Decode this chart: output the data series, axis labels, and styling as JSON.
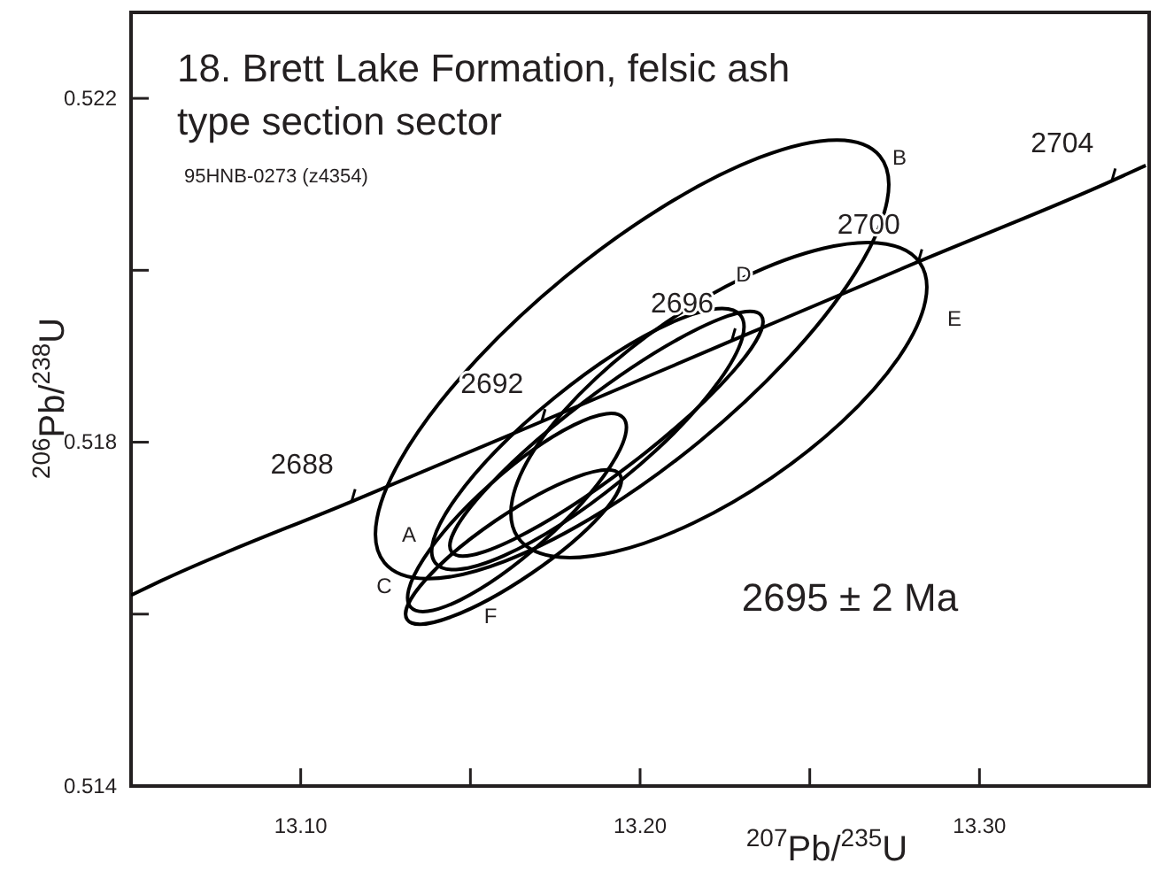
{
  "chart_data": {
    "type": "line",
    "title": "18. Brett Lake Formation, felsic ash type section sector",
    "subtitle": "95HNB-0273 (z4354)",
    "xlabel": "$^{207}$Pb/$^{235}$U",
    "ylabel": "$^{206}$Pb/$^{238}$U",
    "xlim": [
      13.05,
      13.35
    ],
    "ylim": [
      0.514,
      0.523
    ],
    "xticks": [
      {
        "value": 13.1,
        "label": "13.10"
      },
      {
        "value": 13.15,
        "label": null
      },
      {
        "value": 13.2,
        "label": "13.20"
      },
      {
        "value": 13.25,
        "label": null
      },
      {
        "value": 13.3,
        "label": "13.30"
      }
    ],
    "yticks": [
      {
        "value": 0.514,
        "label": "0.514"
      },
      {
        "value": 0.516,
        "label": null
      },
      {
        "value": 0.518,
        "label": "0.518"
      },
      {
        "value": 0.52,
        "label": null
      },
      {
        "value": 0.522,
        "label": "0.522"
      }
    ],
    "grid": false,
    "marker": "none",
    "line_style": "solid",
    "series": [
      {
        "color": "#000000",
        "x": [
          13.05,
          13.059,
          13.115,
          13.171,
          13.227,
          13.282,
          13.339,
          13.349
        ],
        "values": [
          0.51622,
          0.51639,
          0.51731,
          0.51824,
          0.51918,
          0.5201,
          0.52104,
          0.52122
        ]
      }
    ],
    "annotations": [
      {
        "text": "2688",
        "x": 13.115,
        "y": 0.51731
      },
      {
        "text": "2692",
        "x": 13.171,
        "y": 0.51824
      },
      {
        "text": "2696",
        "x": 13.227,
        "y": 0.51918
      },
      {
        "text": "2700",
        "x": 13.282,
        "y": 0.5201
      },
      {
        "text": "2704",
        "x": 13.339,
        "y": 0.52104
      },
      "2695 ± 2 Ma",
      "B",
      "D",
      "E",
      "A",
      "C",
      "F"
    ]
  }
}
